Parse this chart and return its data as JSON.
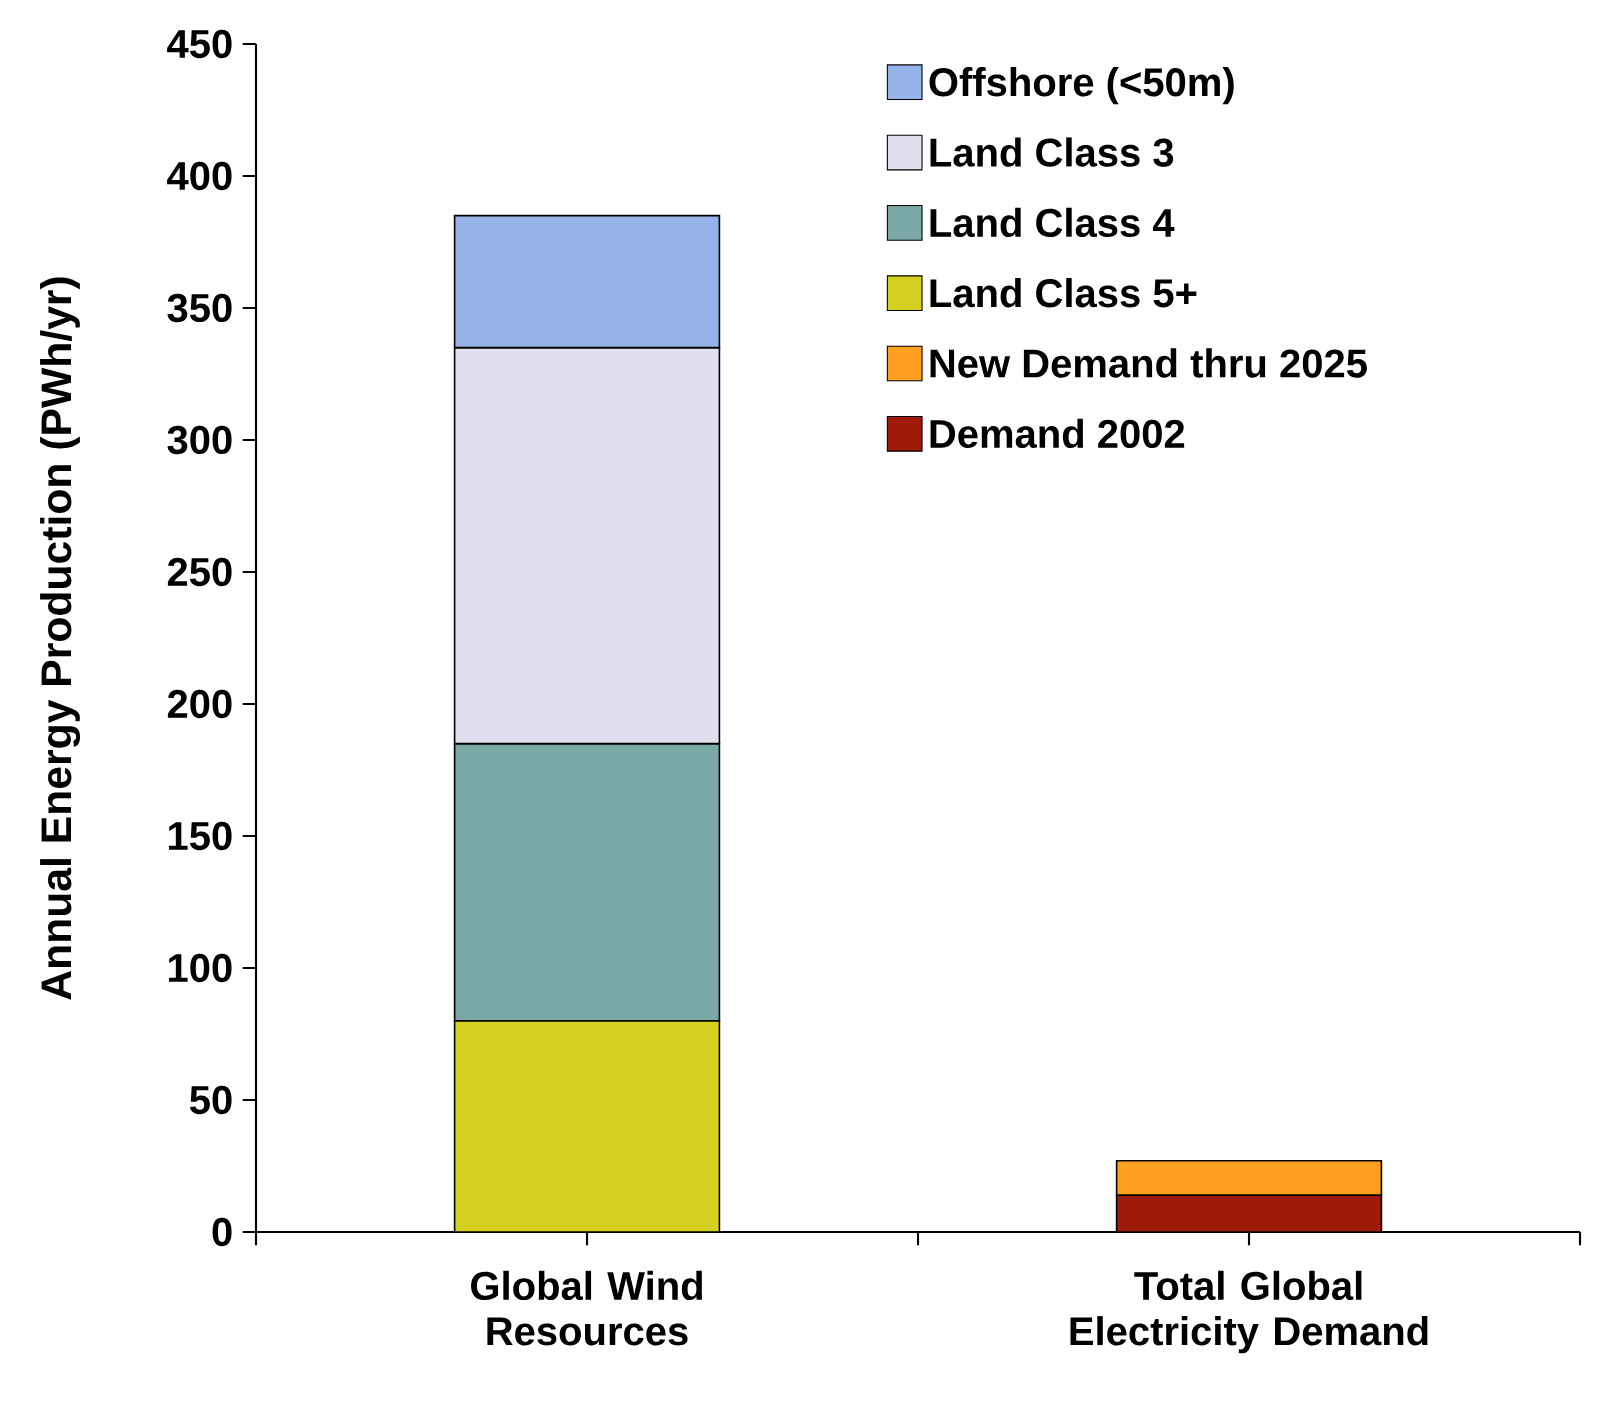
{
  "chart_data": {
    "type": "bar",
    "stacked": true,
    "ylabel": "Annual Energy Production (PWh/yr)",
    "categories": [
      "Global Wind Resources",
      "Total Global Electricity  Demand"
    ],
    "series": [
      {
        "name": "Demand 2002",
        "color": "#a01a0a",
        "values": [
          null,
          14
        ]
      },
      {
        "name": "New Demand thru 2025",
        "color": "#ffa020",
        "values": [
          null,
          13
        ]
      },
      {
        "name": "Land Class 5+",
        "color": "#d4d020",
        "values": [
          80,
          null
        ]
      },
      {
        "name": "Land Class 4",
        "color": "#7aa8a6",
        "values": [
          105,
          null
        ]
      },
      {
        "name": "Land Class 3",
        "color": "#e0e0f0",
        "values": [
          150,
          null
        ]
      },
      {
        "name": "Offshore (<50m)",
        "color": "#95b3e8",
        "values": [
          50,
          null
        ]
      }
    ],
    "ylim": [
      0,
      450
    ],
    "yticks": [
      0,
      50,
      100,
      150,
      200,
      250,
      300,
      350,
      400,
      450
    ],
    "legend": "top right",
    "grid": false
  }
}
